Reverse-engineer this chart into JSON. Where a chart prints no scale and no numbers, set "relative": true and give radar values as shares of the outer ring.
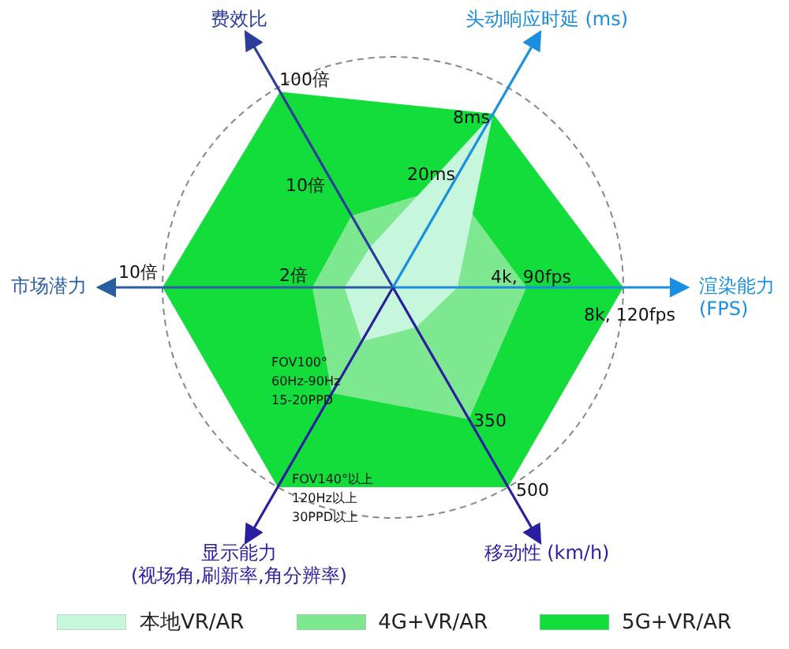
{
  "chart_data": {
    "type": "radar",
    "relative": true,
    "categories": [
      "费效比",
      "头动响应时延 (ms)",
      "渲染能力\n(FPS)",
      "移动性 (km/h)",
      "显示能力\n(视场角,刷新率,角分辨率)",
      "市场潜力"
    ],
    "series": [
      {
        "name": "本地VR/AR",
        "color": "#c6f7dc",
        "values": [
          0.2,
          0.87,
          0.28,
          0.2,
          0.27,
          0.21
        ]
      },
      {
        "name": "4G+VR/AR",
        "color": "#7de88f",
        "values": [
          0.36,
          0.51,
          0.58,
          0.66,
          0.53,
          0.35
        ]
      },
      {
        "name": "5G+VR/AR",
        "color": "#12dd3a",
        "values": [
          0.98,
          0.87,
          1,
          1,
          1,
          1
        ]
      }
    ],
    "annotations": [
      "100倍",
      "10倍",
      "8ms",
      "20ms",
      "4k, 90fps",
      "8k, 120fps",
      "350",
      "500",
      "FOV100°\n60Hz-90Hz\n15-20PPD",
      "FOV140°以上\n120Hz以上\n30PPD以上",
      "10倍",
      "2倍"
    ],
    "grid": true,
    "legend": "bottom"
  }
}
